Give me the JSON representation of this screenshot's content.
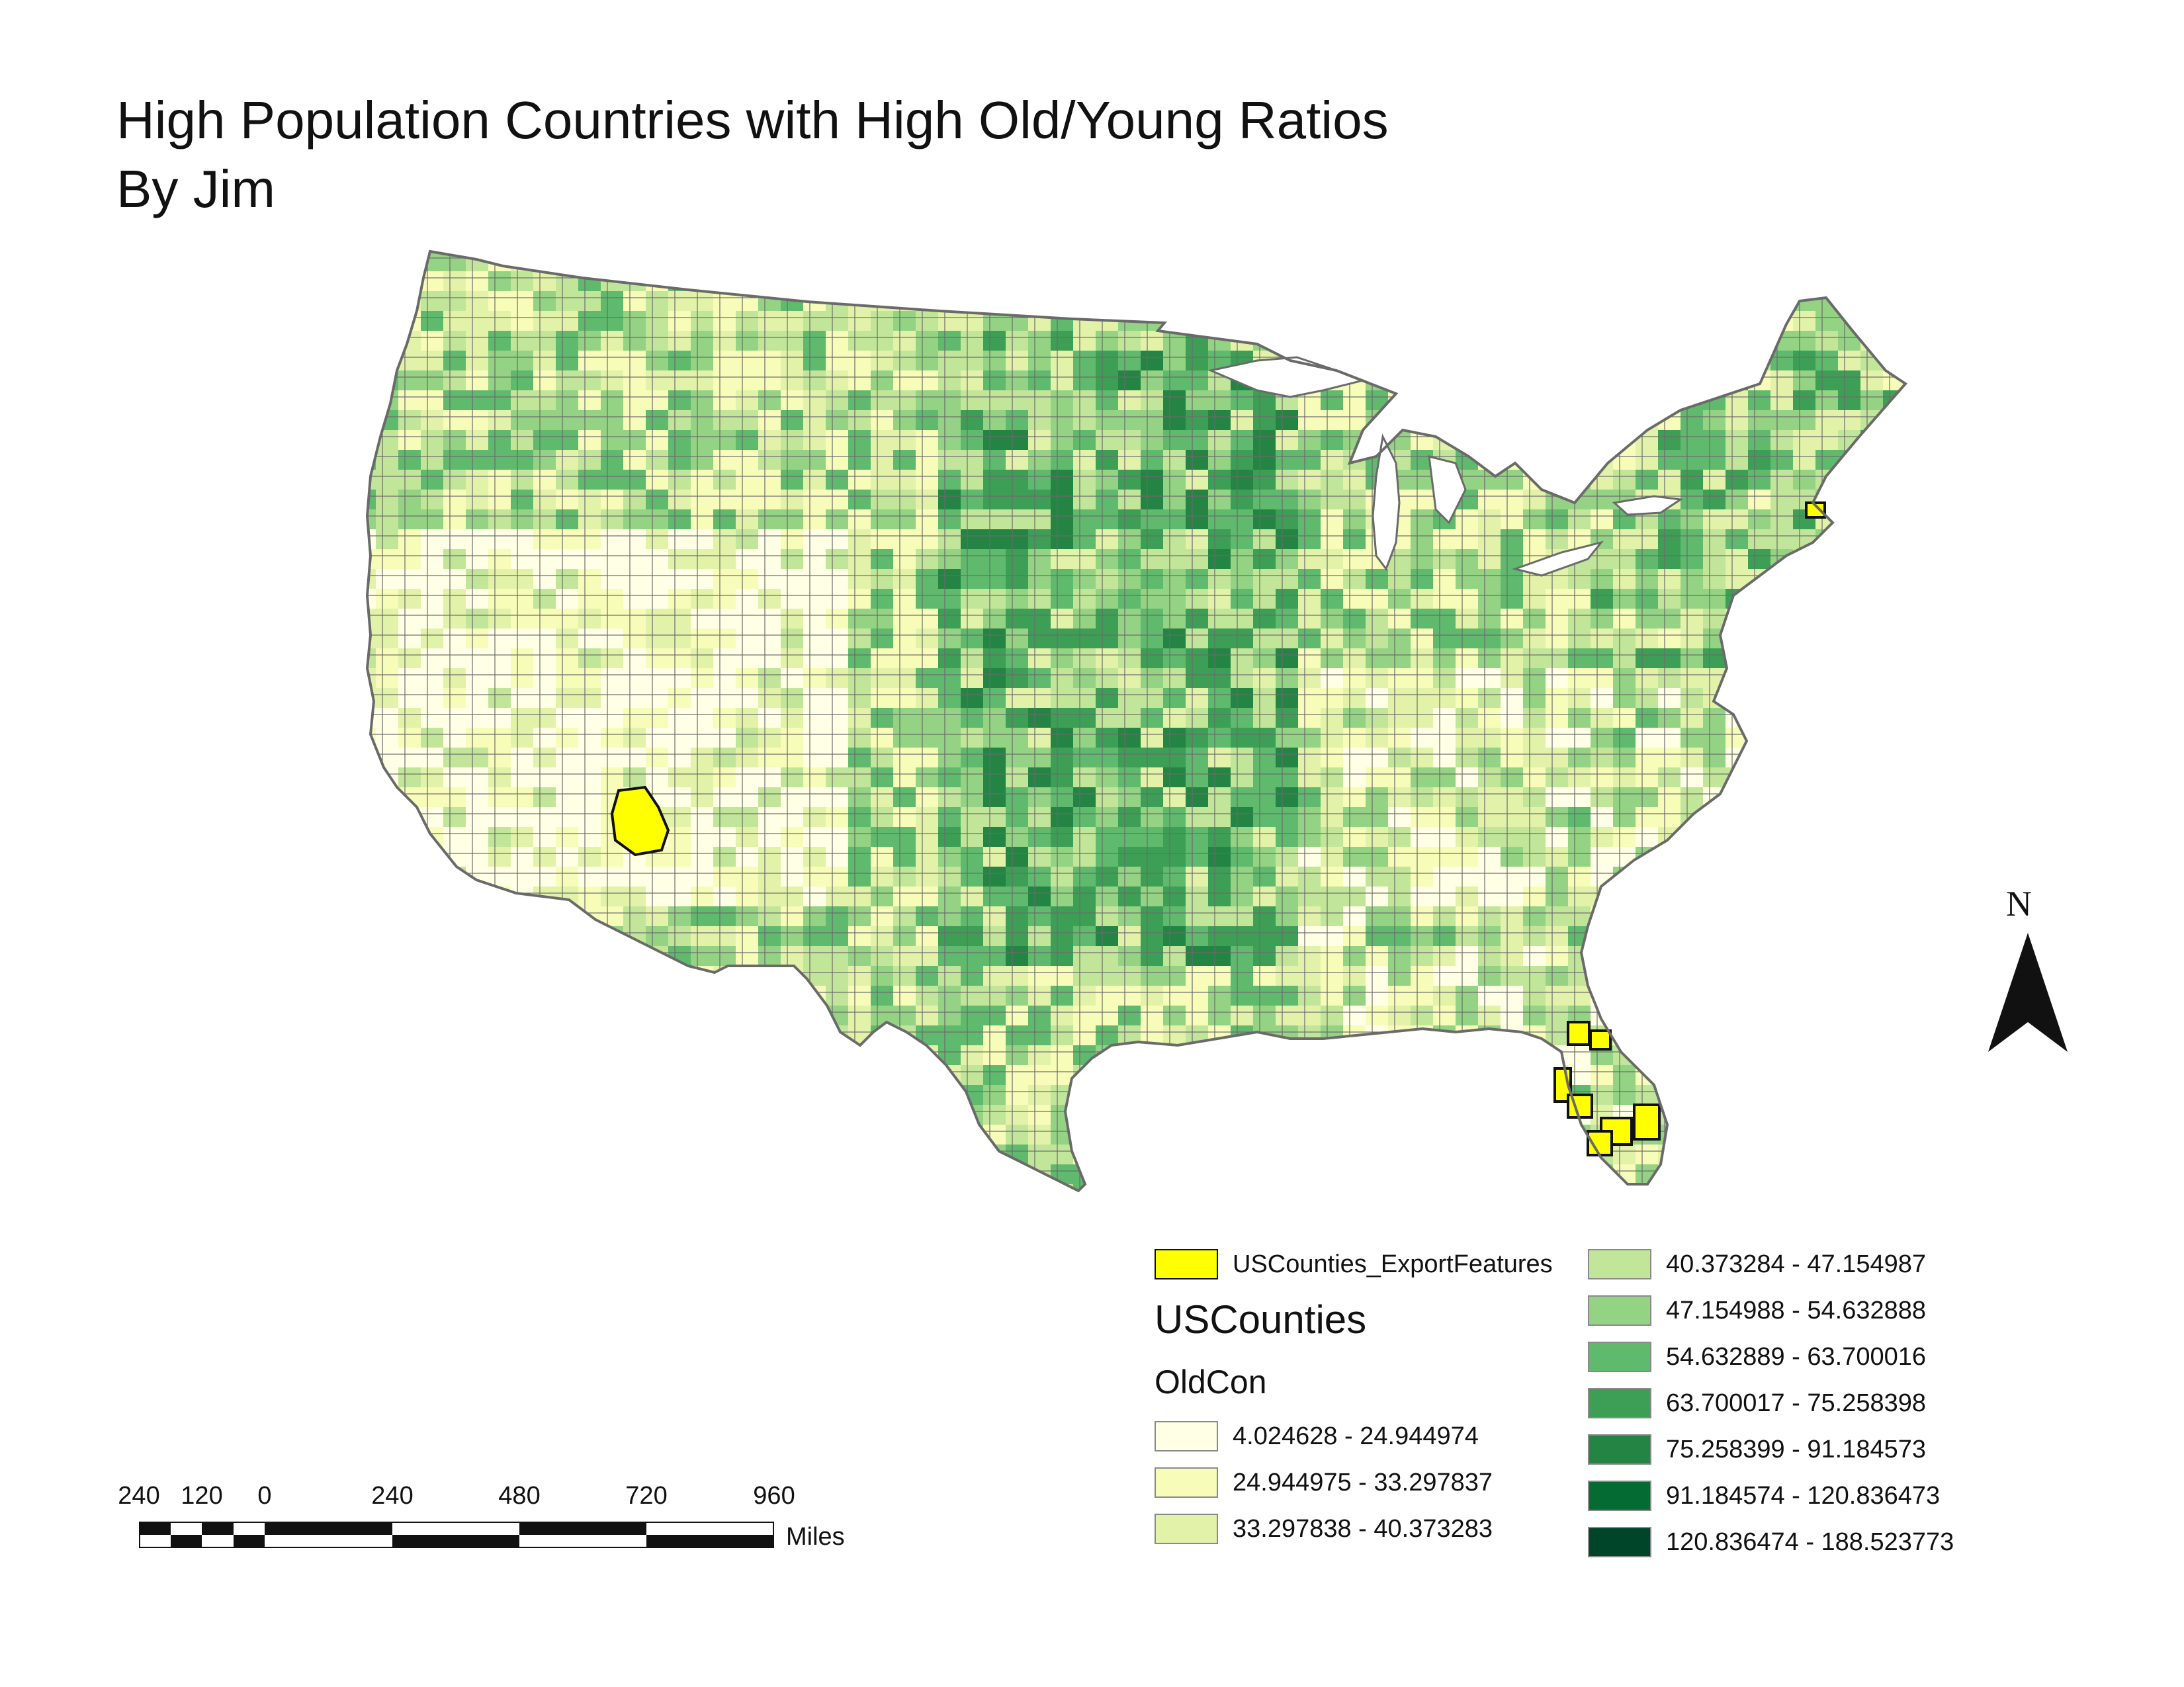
{
  "title": {
    "line1": "High Population Countries with High Old/Young Ratios",
    "line2": "By Jim"
  },
  "north_arrow": {
    "label": "N"
  },
  "scale_bar": {
    "ticks": [
      "240",
      "120",
      "0",
      "240",
      "480",
      "720",
      "960"
    ],
    "units": "Miles"
  },
  "legend": {
    "highlight": {
      "label": "USCounties_ExportFeatures",
      "color": "#ffff00"
    },
    "layer_title": "USCounties",
    "field_title": "OldCon",
    "classes": [
      {
        "label": "4.024628 - 24.944974",
        "color": "#ffffe5"
      },
      {
        "label": "24.944975 - 33.297837",
        "color": "#f7fcb9"
      },
      {
        "label": "33.297838 - 40.373283",
        "color": "#e2f3a9"
      },
      {
        "label": "40.373284 - 47.154987",
        "color": "#c2e699"
      },
      {
        "label": "47.154988 - 54.632888",
        "color": "#93d383"
      },
      {
        "label": "54.632889 - 63.700016",
        "color": "#5fba6d"
      },
      {
        "label": "63.700017 - 75.258398",
        "color": "#3c9f55"
      },
      {
        "label": "75.258399 - 91.184573",
        "color": "#238443"
      },
      {
        "label": "91.184574 - 120.836473",
        "color": "#046b32"
      },
      {
        "label": "120.836474 - 188.523773",
        "color": "#004529"
      }
    ]
  },
  "colors": {
    "county_border": "#6a6a6a",
    "state_outline": "#6a6a6a"
  }
}
